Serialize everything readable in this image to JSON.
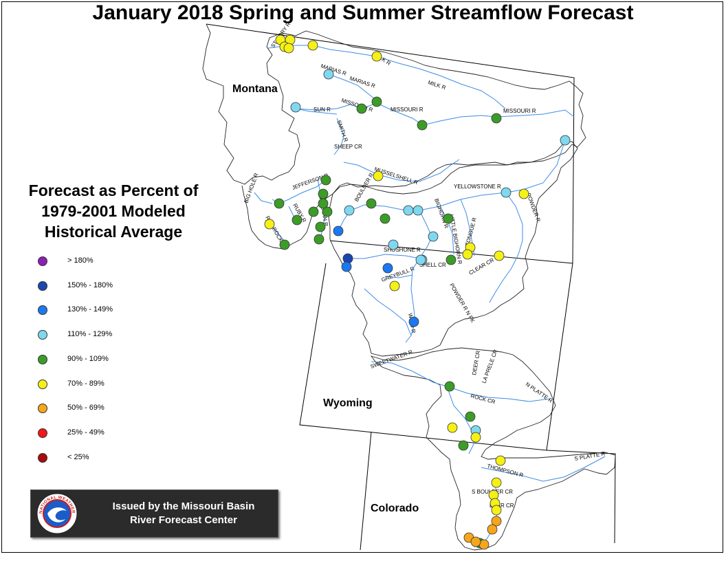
{
  "title": "January 2018 Spring and Summer Streamflow Forecast",
  "states": [
    "Montana",
    "Wyoming",
    "Colorado"
  ],
  "legend": {
    "title_lines": [
      "Forecast as Percent of",
      "1979-2001 Modeled",
      "Historical Average"
    ],
    "items": [
      {
        "label": "> 180%",
        "color": "#8b1fb8"
      },
      {
        "label": "150% - 180%",
        "color": "#1a46b0"
      },
      {
        "label": "130% - 149%",
        "color": "#1c78f0"
      },
      {
        "label": "110% - 129%",
        "color": "#7fd8f0"
      },
      {
        "label": "90% - 109%",
        "color": "#3c9c28"
      },
      {
        "label": "70% - 89%",
        "color": "#f5f016"
      },
      {
        "label": "50% - 69%",
        "color": "#f5a61c"
      },
      {
        "label": "25% - 49%",
        "color": "#f01818"
      },
      {
        "label": "< 25%",
        "color": "#a80c0c"
      }
    ]
  },
  "issued": {
    "line1": "Issued by the Missouri Basin",
    "line2": "River Forecast Center",
    "logo_text": "NATIONAL WEATHER SERVICE",
    "logo_icon": "nws-logo-icon"
  },
  "river_labels": [
    "ST MARY R",
    "MILK R",
    "MARIAS R",
    "MARIAS R",
    "MILK R",
    "MISSOURI R",
    "SUN R",
    "MISSOURI R",
    "MISSOURI R",
    "SMITH R",
    "SHEEP CR",
    "MUSSELSHELL R",
    "BIG HOLE R",
    "JEFFERSON R",
    "RUBY R",
    "GALLATIN R",
    "RED ROCK R",
    "BOULDER R",
    "YELLOWSTONE R",
    "BIGHORN R",
    "LITTLE BIGHORN R",
    "TONGUE R",
    "POWDER R",
    "SHOSHONE R",
    "SHELL CR",
    "GREYBULL R",
    "CLEAR CR",
    "POWDER R N FK",
    "WIND R",
    "SWEETWATER R",
    "DEER CR",
    "LA PRELE CR",
    "N PLATTE R",
    "ROCK CR",
    "THOMPSON R",
    "S PLATTE R",
    "S BOULDER CR",
    "BEAR CR"
  ],
  "forecast_points": [
    {
      "river": "St Mary R",
      "category": "70% - 89%"
    },
    {
      "river": "St Mary R",
      "category": "70% - 89%"
    },
    {
      "river": "St Mary R",
      "category": "70% - 89%"
    },
    {
      "river": "St Mary R",
      "category": "70% - 89%"
    },
    {
      "river": "Milk R",
      "category": "70% - 89%"
    },
    {
      "river": "Milk R",
      "category": "70% - 89%"
    },
    {
      "river": "Marias R",
      "category": "110% - 129%"
    },
    {
      "river": "Sun R",
      "category": "110% - 129%"
    },
    {
      "river": "Missouri R",
      "category": "90% - 109%"
    },
    {
      "river": "Missouri R",
      "category": "90% - 109%"
    },
    {
      "river": "Missouri R",
      "category": "90% - 109%"
    },
    {
      "river": "Missouri R",
      "category": "90% - 109%"
    },
    {
      "river": "Missouri R",
      "category": "110% - 129%"
    },
    {
      "river": "Musselshell R",
      "category": "70% - 89%"
    },
    {
      "river": "Jefferson R",
      "category": "90% - 109%"
    },
    {
      "river": "Jefferson R",
      "category": "90% - 109%"
    },
    {
      "river": "Big Hole R",
      "category": "90% - 109%"
    },
    {
      "river": "Red Rock R",
      "category": "70% - 89%"
    },
    {
      "river": "Red Rock R",
      "category": "90% - 109%"
    },
    {
      "river": "Ruby R",
      "category": "90% - 109%"
    },
    {
      "river": "Gallatin R",
      "category": "90% - 109%"
    },
    {
      "river": "Gallatin R",
      "category": "90% - 109%"
    },
    {
      "river": "Gallatin R",
      "category": "90% - 109%"
    },
    {
      "river": "Gallatin R",
      "category": "90% - 109%"
    },
    {
      "river": "Madison R",
      "category": "90% - 109%"
    },
    {
      "river": "Yellowstone R",
      "category": "130% - 149%"
    },
    {
      "river": "Yellowstone R",
      "category": "110% - 129%"
    },
    {
      "river": "Yellowstone R",
      "category": "110% - 129%"
    },
    {
      "river": "Boulder R",
      "category": "90% - 109%"
    },
    {
      "river": "Stillwater R",
      "category": "90% - 109%"
    },
    {
      "river": "Clarks Fork",
      "category": "110% - 129%"
    },
    {
      "river": "Bighorn R",
      "category": "110% - 129%"
    },
    {
      "river": "Little Bighorn R",
      "category": "90% - 109%"
    },
    {
      "river": "Bighorn R",
      "category": "110% - 129%"
    },
    {
      "river": "Yellowstone R",
      "category": "110% - 129%"
    },
    {
      "river": "Powder R",
      "category": "70% - 89%"
    },
    {
      "river": "Tongue R",
      "category": "70% - 89%"
    },
    {
      "river": "Tongue R",
      "category": "70% - 89%"
    },
    {
      "river": "Clear Cr",
      "category": "70% - 89%"
    },
    {
      "river": "Shoshone R",
      "category": "110% - 129%"
    },
    {
      "river": "Shoshone R",
      "category": "150% - 180%"
    },
    {
      "river": "Shoshone R",
      "category": "130% - 149%"
    },
    {
      "river": "Greybull R",
      "category": "130% - 149%"
    },
    {
      "river": "Greybull R",
      "category": "70% - 89%"
    },
    {
      "river": "Shell Cr",
      "category": "110% - 129%"
    },
    {
      "river": "Bighorn R",
      "category": "90% - 109%"
    },
    {
      "river": "Wind R",
      "category": "130% - 149%"
    },
    {
      "river": "N Platte R",
      "category": "90% - 109%"
    },
    {
      "river": "Rock Cr",
      "category": "90% - 109%"
    },
    {
      "river": "N Platte R",
      "category": "70% - 89%"
    },
    {
      "river": "N Platte R",
      "category": "110% - 129%"
    },
    {
      "river": "N Platte R",
      "category": "70% - 89%"
    },
    {
      "river": "N Platte R",
      "category": "90% - 109%"
    },
    {
      "river": "Thompson R",
      "category": "70% - 89%"
    },
    {
      "river": "S Boulder Cr",
      "category": "70% - 89%"
    },
    {
      "river": "S Boulder Cr",
      "category": "70% - 89%"
    },
    {
      "river": "S Boulder Cr",
      "category": "70% - 89%"
    },
    {
      "river": "Bear Cr",
      "category": "70% - 89%"
    },
    {
      "river": "Bear Cr",
      "category": "50% - 69%"
    },
    {
      "river": "S Platte R",
      "category": "50% - 69%"
    },
    {
      "river": "S Platte R",
      "category": "50% - 69%"
    },
    {
      "river": "S Platte R",
      "category": "90% - 109%"
    },
    {
      "river": "S Platte R",
      "category": "50% - 69%"
    },
    {
      "river": "S Platte R",
      "category": "50% - 69%"
    }
  ]
}
